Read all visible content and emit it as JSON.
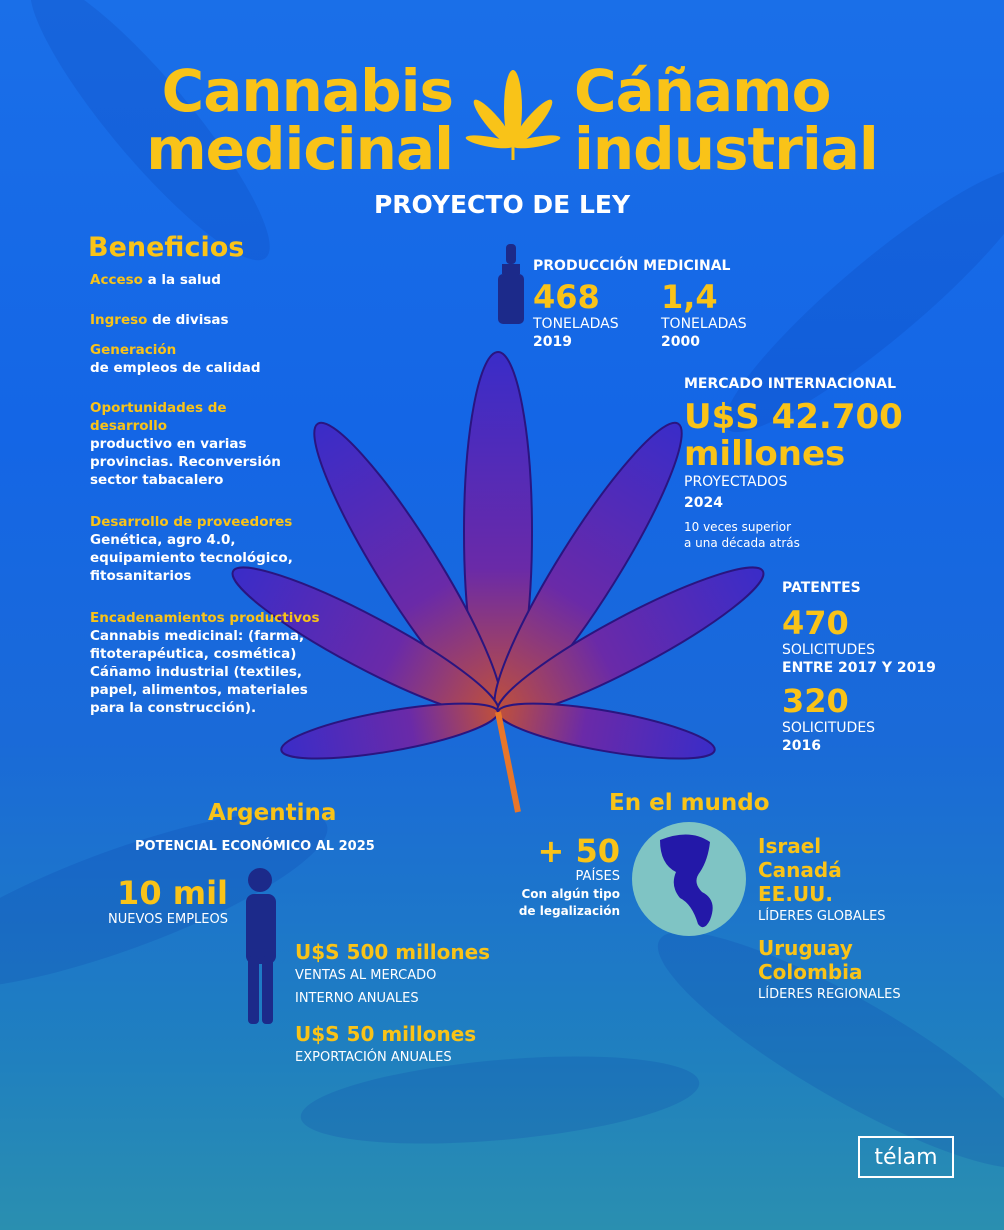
{
  "header": {
    "title_left": [
      "Cannabis",
      "medicinal"
    ],
    "title_right": [
      "Cáñamo",
      "industrial"
    ],
    "subtitle": "PROYECTO DE LEY"
  },
  "beneficios": {
    "heading": "Beneficios",
    "items": [
      {
        "highlight": "Acceso",
        "text": " a la salud"
      },
      {
        "highlight": "Ingreso",
        "text": " de divisas"
      },
      {
        "highlight": "Generación",
        "text": "de empleos de calidad"
      },
      {
        "highlight": "Oportunidades de desarrollo",
        "text": "productivo en varias provincias. Reconversión sector tabacalero"
      },
      {
        "highlight": "Desarrollo de proveedores",
        "text": "Genética, agro 4.0, equipamiento tecnológico, fitosanitarios"
      },
      {
        "highlight": "Encadenamientos productivos",
        "text": "Cannabis medicinal: (farma, fitoterapéutica, cosmética) Cáñamo industrial (textiles, papel, alimentos, materiales para la construcción)."
      }
    ]
  },
  "produccion": {
    "heading": "PRODUCCIÓN MEDICINAL",
    "stats": [
      {
        "value": "468",
        "unit": "TONELADAS",
        "year": "2019"
      },
      {
        "value": "1,4",
        "unit": "TONELADAS",
        "year": "2000"
      }
    ]
  },
  "mercado": {
    "heading": "MERCADO INTERNACIONAL",
    "value_line1": "U$S 42.700",
    "value_line2": "millones",
    "unit": "PROYECTADOS",
    "year": "2024",
    "note_line1": "10 veces superior",
    "note_line2": "a una década atrás"
  },
  "patentes": {
    "heading": "PATENTES",
    "stats": [
      {
        "value": "470",
        "unit": "SOLICITUDES",
        "period": "ENTRE 2017 Y 2019"
      },
      {
        "value": "320",
        "unit": "SOLICITUDES",
        "period": "2016"
      }
    ]
  },
  "argentina": {
    "heading": "Argentina",
    "subheading": "POTENCIAL ECONÓMICO AL 2025",
    "jobs_value": "10 mil",
    "jobs_label": "NUEVOS EMPLEOS",
    "sales_value": "U$S 500 millones",
    "sales_label_1": "VENTAS AL MERCADO",
    "sales_label_2": "INTERNO ANUALES",
    "export_value": "U$S 50 millones",
    "export_label": "EXPORTACIÓN ANUALES"
  },
  "mundo": {
    "heading": "En el mundo",
    "countries_value": "+ 50",
    "countries_label": "PAÍSES",
    "countries_note_1": "Con algún tipo",
    "countries_note_2": "de legalización",
    "global_leaders": [
      "Israel",
      "Canadá",
      "EE.UU."
    ],
    "global_label": "LÍDERES GLOBALES",
    "regional_leaders": [
      "Uruguay",
      "Colombia"
    ],
    "regional_label": "LÍDERES REGIONALES"
  },
  "brand": {
    "logo": "télam"
  },
  "colors": {
    "accent": "#f9c318",
    "background": "#1466e6",
    "leaf_purple": "#5a2bd0",
    "leaf_orange": "#e8762a"
  }
}
